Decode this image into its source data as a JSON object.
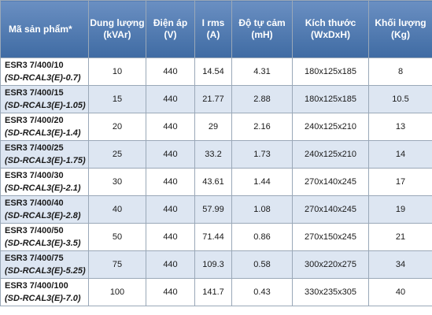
{
  "headers": [
    {
      "label": "Mã sản phẩm*",
      "sub": ""
    },
    {
      "label": "Dung lượng",
      "sub": "(kVAr)"
    },
    {
      "label": "Điện áp",
      "sub": "(V)"
    },
    {
      "label": "I rms",
      "sub": "(A)"
    },
    {
      "label": "Độ tự cảm",
      "sub": "(mH)"
    },
    {
      "label": "Kích thước",
      "sub": "(WxDxH)"
    },
    {
      "label": "Khối lượng",
      "sub": "(Kg)"
    }
  ],
  "rows": [
    {
      "model": "ESR3 7/400/10",
      "code": "(SD-RCAL3(E)-0.7)",
      "capacity": "10",
      "voltage": "440",
      "irms": "14.54",
      "inductance": "4.31",
      "size": "180x125x185",
      "weight": "8"
    },
    {
      "model": "ESR3 7/400/15",
      "code": "(SD-RCAL3(E)-1.05)",
      "capacity": "15",
      "voltage": "440",
      "irms": "21.77",
      "inductance": "2.88",
      "size": "180x125x185",
      "weight": "10.5"
    },
    {
      "model": "ESR3 7/400/20",
      "code": "(SD-RCAL3(E)-1.4)",
      "capacity": "20",
      "voltage": "440",
      "irms": "29",
      "inductance": "2.16",
      "size": "240x125x210",
      "weight": "13"
    },
    {
      "model": "ESR3 7/400/25",
      "code": "(SD-RCAL3(E)-1.75)",
      "capacity": "25",
      "voltage": "440",
      "irms": "33.2",
      "inductance": "1.73",
      "size": "240x125x210",
      "weight": "14"
    },
    {
      "model": "ESR3 7/400/30",
      "code": "(SD-RCAL3(E)-2.1)",
      "capacity": "30",
      "voltage": "440",
      "irms": "43.61",
      "inductance": "1.44",
      "size": "270x140x245",
      "weight": "17"
    },
    {
      "model": "ESR3 7/400/40",
      "code": "(SD-RCAL3(E)-2.8)",
      "capacity": "40",
      "voltage": "440",
      "irms": "57.99",
      "inductance": "1.08",
      "size": "270x140x245",
      "weight": "19"
    },
    {
      "model": "ESR3 7/400/50",
      "code": "(SD-RCAL3(E)-3.5)",
      "capacity": "50",
      "voltage": "440",
      "irms": "71.44",
      "inductance": "0.86",
      "size": "270x150x245",
      "weight": "21"
    },
    {
      "model": "ESR3 7/400/75",
      "code": "(SD-RCAL3(E)-5.25)",
      "capacity": "75",
      "voltage": "440",
      "irms": "109.3",
      "inductance": "0.58",
      "size": "300x220x275",
      "weight": "34"
    },
    {
      "model": "ESR3 7/400/100",
      "code": "(SD-RCAL3(E)-7.0)",
      "capacity": "100",
      "voltage": "440",
      "irms": "141.7",
      "inductance": "0.43",
      "size": "330x235x305",
      "weight": "40"
    }
  ]
}
